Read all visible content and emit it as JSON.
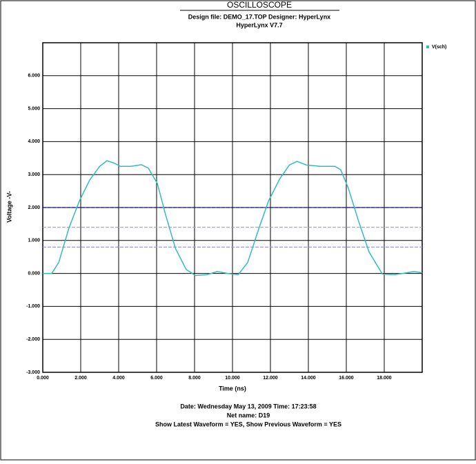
{
  "chart_data": {
    "type": "line",
    "title": "OSCILLOSCOPE",
    "subtitle": [
      "Design file: DEMO_17.TOP    Designer: HyperLynx",
      "HyperLynx V7.7"
    ],
    "xlabel": "Time (ns)",
    "ylabel": "Voltage -V-",
    "x": [
      0,
      0.47,
      0.84,
      1.38,
      1.93,
      2.47,
      3.0,
      3.38,
      3.75,
      4.1,
      4.65,
      5.2,
      5.56,
      6.04,
      6.47,
      7.0,
      7.56,
      8.04,
      8.65,
      9.2,
      9.75,
      10.3,
      10.8,
      11.4,
      11.9,
      12.5,
      13.0,
      13.4,
      13.9,
      14.65,
      15.4,
      15.7,
      16.1,
      16.65,
      17.2,
      17.9,
      18.5,
      19.2,
      19.56,
      20
    ],
    "series": [
      {
        "name": "V(sch)",
        "color": "#33bbbb",
        "values": [
          0,
          0,
          0.33,
          1.38,
          2.2,
          2.83,
          3.25,
          3.42,
          3.35,
          3.25,
          3.25,
          3.3,
          3.2,
          2.73,
          1.79,
          0.75,
          0.12,
          -0.06,
          -0.04,
          0.06,
          0,
          -0.04,
          0.33,
          1.38,
          2.2,
          2.88,
          3.29,
          3.4,
          3.29,
          3.25,
          3.25,
          3.15,
          2.6,
          1.58,
          0.65,
          -0.02,
          -0.04,
          0.02,
          0.06,
          0.02
        ]
      }
    ],
    "reference_lines": [
      {
        "value": 2.0,
        "color": "#000080"
      },
      {
        "value": 1.4,
        "color": "#9999ee"
      },
      {
        "value": 0.8,
        "color": "#9999ee"
      }
    ],
    "xlim": [
      0,
      20
    ],
    "xticks": [
      {
        "value": 0,
        "label": "0.000"
      },
      {
        "value": 2,
        "label": "2.000"
      },
      {
        "value": 4,
        "label": "4.000"
      },
      {
        "value": 6,
        "label": "6.000"
      },
      {
        "value": 8,
        "label": "8.000"
      },
      {
        "value": 10,
        "label": "10.000"
      },
      {
        "value": 12,
        "label": "12.000"
      },
      {
        "value": 14,
        "label": "14.000"
      },
      {
        "value": 16,
        "label": "16.000"
      },
      {
        "value": 18,
        "label": "18.000"
      }
    ],
    "ylim": [
      -3,
      7
    ],
    "yticks": [
      {
        "value": -3,
        "label": "-3.000"
      },
      {
        "value": -2,
        "label": "-2.000"
      },
      {
        "value": -1,
        "label": "-1.000"
      },
      {
        "value": 0,
        "label": "0.000"
      },
      {
        "value": 1,
        "label": "1.000"
      },
      {
        "value": 2,
        "label": "2.000"
      },
      {
        "value": 3,
        "label": "3.000"
      },
      {
        "value": 4,
        "label": "4.000"
      },
      {
        "value": 5,
        "label": "5.000"
      },
      {
        "value": 6,
        "label": "6.000"
      }
    ],
    "grid": true,
    "legend": "top-right",
    "footer": [
      "Date: Wednesday May 13, 2009  Time: 17:23:58",
      "Net name: D19",
      "Show Latest Waveform = YES,  Show Previous Waveform = YES"
    ]
  }
}
